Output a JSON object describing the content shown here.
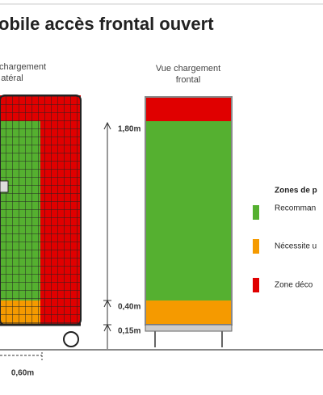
{
  "title": "obile accès frontal ouvert",
  "side_view": {
    "label_lines": [
      "chargement",
      "atéral"
    ]
  },
  "front_view": {
    "label_lines": [
      "Vue chargement",
      "frontal"
    ]
  },
  "dimensions": {
    "height_max": "1,80m",
    "height_mid": "0,40m",
    "height_min": "0,15m",
    "depth": "0,60m"
  },
  "legend": {
    "title": "Zones de p",
    "items": [
      "Recomman",
      "Nécessite u",
      "Zone déco"
    ]
  }
}
